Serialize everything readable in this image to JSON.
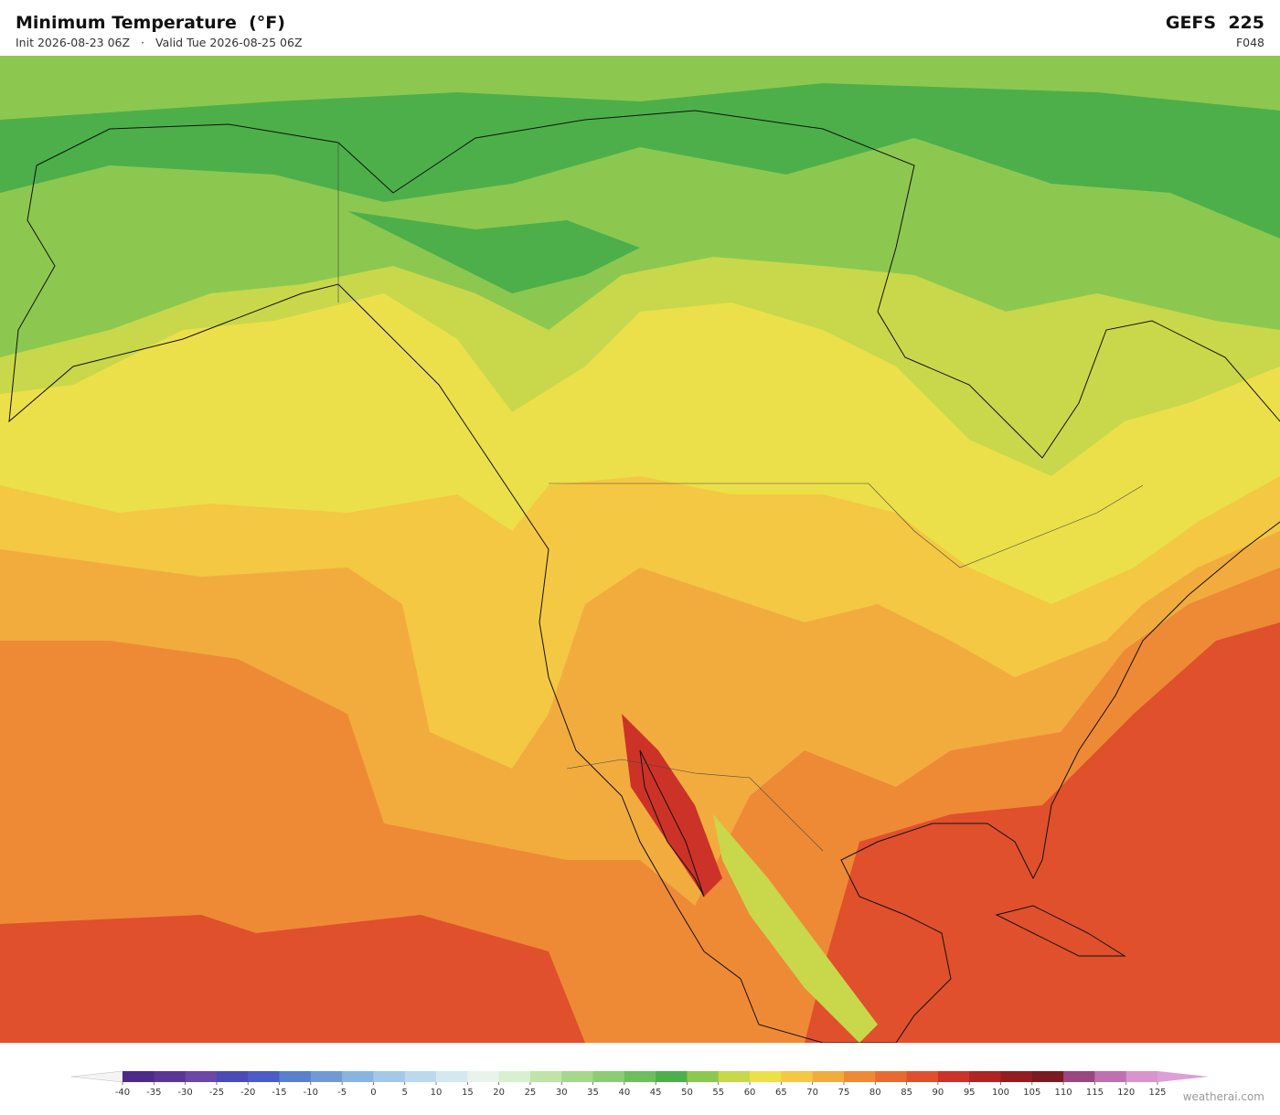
{
  "header": {
    "title": "Minimum Temperature  (°F)",
    "init": "Init 2026-08-23 06Z",
    "separator": "·",
    "valid": "Valid Tue 2026-08-25 06Z",
    "model": "GEFS  225",
    "forecast_hour": "F048"
  },
  "colorbar": {
    "ticks": [
      -40,
      -35,
      -30,
      -25,
      -20,
      -15,
      -10,
      -5,
      0,
      5,
      10,
      15,
      20,
      25,
      30,
      35,
      40,
      45,
      50,
      55,
      60,
      65,
      70,
      75,
      80,
      85,
      90,
      95,
      100,
      105,
      110,
      115,
      120,
      125
    ],
    "colors": [
      "#4b2a8c",
      "#5b3597",
      "#6a47a8",
      "#4a4ab8",
      "#4a5cc8",
      "#5a80d0",
      "#6f9ad6",
      "#88b4e0",
      "#a3c8e8",
      "#bcd8ee",
      "#d4e8f2",
      "#e8f4ea",
      "#d8efd0",
      "#c0e4a8",
      "#a6d88c",
      "#8ccc74",
      "#6cbf5c",
      "#4daf4a",
      "#8cc850",
      "#c8d84a",
      "#ece04a",
      "#f4c842",
      "#f2ac3e",
      "#ee8a36",
      "#e86a30",
      "#e0502c",
      "#cc3228",
      "#b02424",
      "#941c20",
      "#7c1a24",
      "#9a4680",
      "#c070b0",
      "#d894cc"
    ],
    "under_color": "#f4f4f4",
    "over_color": "#dca0d8"
  },
  "watermark": "weatherai.com"
}
